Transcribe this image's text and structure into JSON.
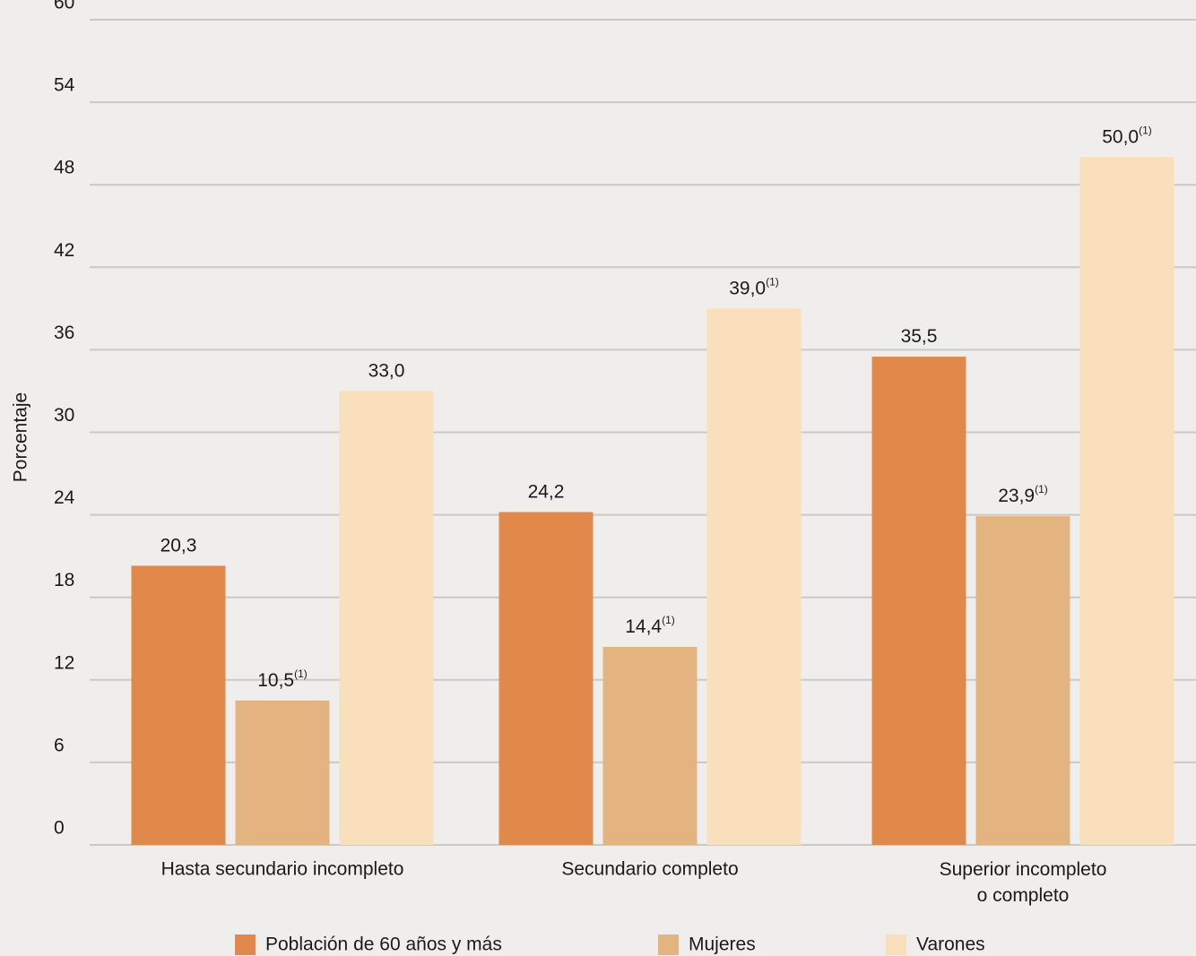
{
  "chart_data": {
    "type": "bar",
    "y_label": "Porcentaje",
    "categories": [
      "Hasta secundario incompleto",
      "Secundario completo",
      "Superior incompleto\no completo"
    ],
    "series": [
      {
        "name": "Población de 60 años y más",
        "color": "#e0894a",
        "values": [
          20.3,
          24.2,
          35.5
        ],
        "value_labels": [
          "20,3",
          "24,2",
          "35,5"
        ],
        "value_notes": [
          null,
          null,
          null
        ]
      },
      {
        "name": "Mujeres",
        "color": "#e3b47f",
        "values": [
          10.5,
          14.4,
          23.9
        ],
        "value_labels": [
          "10,5",
          "14,4",
          "23,9"
        ],
        "value_notes": [
          "(1)",
          "(1)",
          "(1)"
        ]
      },
      {
        "name": "Varones",
        "color": "#fadfbc",
        "values": [
          33.0,
          39.0,
          50.0
        ],
        "value_labels": [
          "33,0",
          "39,0",
          "50,0"
        ],
        "value_notes": [
          null,
          "(1)",
          "(1)"
        ]
      }
    ],
    "ylim": [
      0,
      60
    ],
    "yticks": [
      0,
      6,
      12,
      18,
      24,
      30,
      36,
      42,
      48,
      54,
      60
    ],
    "grid": true
  }
}
